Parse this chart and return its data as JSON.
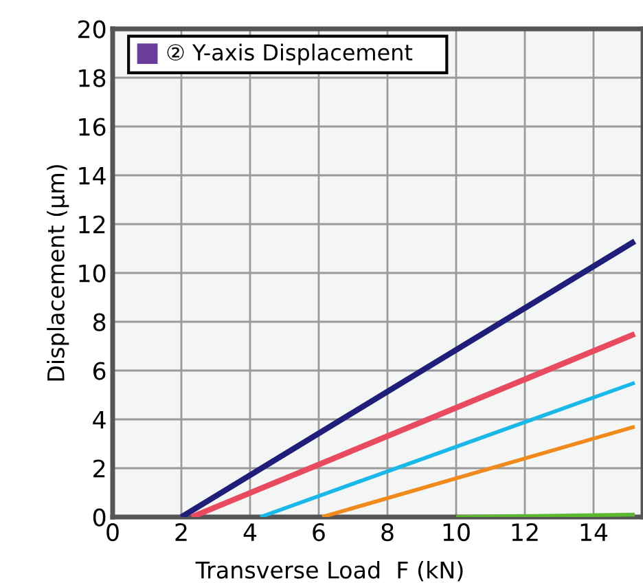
{
  "chart_data": {
    "type": "line",
    "xlabel": "Transverse Load  F (kN)",
    "ylabel": "Displacement (μm)",
    "annotations": [
      "② Y-axis Displacement"
    ],
    "xlim": [
      0,
      15.44
    ],
    "xticks": [
      0,
      2,
      4,
      6,
      8,
      10,
      12,
      14
    ],
    "ylim": [
      0,
      20
    ],
    "yticks": [
      0,
      2,
      4,
      6,
      8,
      10,
      12,
      14,
      16,
      18,
      20
    ],
    "grid": true,
    "line_style": "solid",
    "marker": "none",
    "series": [
      {
        "color": "#1f1f7a",
        "x": [
          2,
          15.2
        ],
        "values": [
          0,
          11.3
        ]
      },
      {
        "color": "#e84a5f",
        "x": [
          2.3,
          15.2
        ],
        "values": [
          0,
          7.5
        ]
      },
      {
        "color": "#1ab8e8",
        "x": [
          4.3,
          15.2
        ],
        "values": [
          0,
          5.5
        ]
      },
      {
        "color": "#f08a1c",
        "x": [
          6.1,
          15.2
        ],
        "values": [
          0,
          3.7
        ]
      },
      {
        "color": "#5cb82e",
        "x": [
          10,
          15.2
        ],
        "values": [
          0,
          0.1
        ]
      }
    ]
  }
}
